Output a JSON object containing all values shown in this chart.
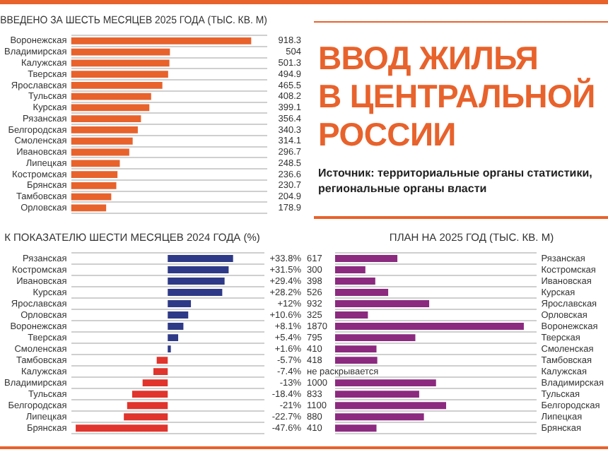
{
  "chart_data": [
    {
      "type": "bar",
      "orientation": "horizontal",
      "title": "ВВЕДЕНО ЗА ШЕСТЬ МЕСЯЦЕВ 2025 ГОДА (ТЫС. КВ. М)",
      "grid": "y",
      "data_labels": true,
      "color": "#e8622c",
      "categories": [
        "Воронежская",
        "Владимирская",
        "Калужская",
        "Тверская",
        "Ярославская",
        "Тульская",
        "Курская",
        "Рязанская",
        "Белгородская",
        "Смоленская",
        "Ивановская",
        "Липецкая",
        "Костромская",
        "Брянская",
        "Тамбовская",
        "Орловская"
      ],
      "values": [
        918.3,
        504,
        501.3,
        494.9,
        465.5,
        408.2,
        399.1,
        356.4,
        340.3,
        314.1,
        296.7,
        248.5,
        236.6,
        230.7,
        204.9,
        178.9
      ]
    },
    {
      "type": "other",
      "title": "ВВОД ЖИЛЬЯ\nВ ЦЕНТРАЛЬНОЙ\nРОССИИ",
      "annotations": [
        "Источник: территориальные органы статистики, региональные органы власти"
      ]
    },
    {
      "type": "bar",
      "orientation": "horizontal",
      "title": "К ПОКАЗАТЕЛЮ ШЕСТИ МЕСЯЦЕВ 2024 ГОДА (%)",
      "grid": "y",
      "categories": [
        "Рязанская",
        "Костромская",
        "Ивановская",
        "Курская",
        "Ярославская",
        "Орловская",
        "Воронежская",
        "Тверская",
        "Смоленская",
        "Тамбовская",
        "Калужская",
        "Владимирская",
        "Тульская",
        "Белгородская",
        "Липецкая",
        "Брянская"
      ],
      "values": [
        33.8,
        31.5,
        29.4,
        28.2,
        12,
        10.6,
        8.1,
        5.4,
        1.6,
        -5.7,
        -7.4,
        -13,
        -18.4,
        -21,
        -22.7,
        -47.6
      ],
      "colors": [
        "#2e3a87",
        "#2e3a87",
        "#2e3a87",
        "#2e3a87",
        "#2e3a87",
        "#2e3a87",
        "#2e3a87",
        "#2e3a87",
        "#2e3a87",
        "#e0342c",
        "#e0342c",
        "#e0342c",
        "#e0342c",
        "#e0342c",
        "#e0342c",
        "#e0342c"
      ],
      "value_labels": [
        "+33.8%",
        "+31.5%",
        "+29.4%",
        "+28.2%",
        "+12%",
        "+10.6%",
        "+8.1%",
        "+5.4%",
        "+1.6%",
        "-5.7%",
        "-7.4%",
        "-13%",
        "-18.4%",
        "-21%",
        "-22.7%",
        "-47.6%"
      ]
    },
    {
      "type": "bar",
      "orientation": "horizontal",
      "title": "ПЛАН НА 2025 ГОД (ТЫС. КВ. М)",
      "grid": "y",
      "color": "#8b2a7f",
      "categories": [
        "Рязанская",
        "Костромская",
        "Ивановская",
        "Курская",
        "Ярославская",
        "Орловская",
        "Воронежская",
        "Тверская",
        "Смоленская",
        "Тамбовская",
        "Калужская",
        "Владимирская",
        "Тульская",
        "Белгородская",
        "Липецкая",
        "Брянская"
      ],
      "values": [
        617,
        300,
        398,
        526,
        932,
        325,
        1870,
        795,
        410,
        418,
        null,
        1000,
        833,
        1100,
        880,
        410
      ],
      "value_labels": [
        "617",
        "300",
        "398",
        "526",
        "932",
        "325",
        "1870",
        "795",
        "410",
        "418",
        "не раскрывается",
        "1000",
        "833",
        "1100",
        "880",
        "410"
      ]
    }
  ]
}
